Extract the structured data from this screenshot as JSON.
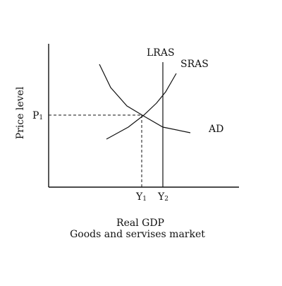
{
  "axes": {
    "y_label": "Price level",
    "x_caption_line1": "Real GDP",
    "x_caption_line2": "Goods and servises market"
  },
  "curves": {
    "lras": "LRAS",
    "sras": "SRAS",
    "ad": "AD"
  },
  "ticks": {
    "p1_main": "P",
    "p1_sub": "1",
    "y1_main": "Y",
    "y1_sub": "1",
    "y2_main": "Y",
    "y2_sub": "2"
  },
  "colors": {
    "ink": "#111111",
    "background": "#ffffff"
  }
}
